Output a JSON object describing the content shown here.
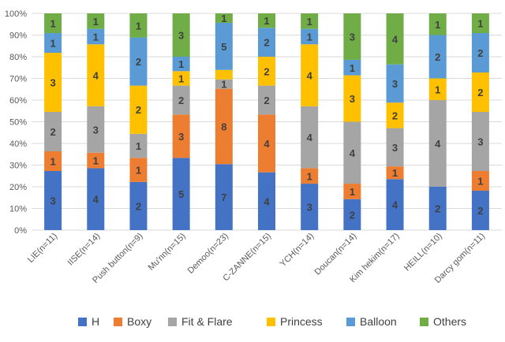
{
  "chart_data": {
    "type": "bar",
    "stacked": true,
    "percent": true,
    "title": "",
    "xlabel": "",
    "ylabel": "",
    "ylim": [
      0,
      100
    ],
    "yticks": [
      "0%",
      "10%",
      "20%",
      "30%",
      "40%",
      "50%",
      "60%",
      "70%",
      "80%",
      "90%",
      "100%"
    ],
    "grid": true,
    "legend_position": "bottom",
    "categories": [
      "LIE(n=11)",
      "IISE(n=14)",
      "Push button(n=9)",
      "Mu'nn(n=15)",
      "Demoo(n=23)",
      "C-ZANNE(n=15)",
      "YCH(n=14)",
      "Doucan(n=14)",
      "Kim hekim(n=17)",
      "HEILL(n=10)",
      "Darcy gom(n=11)"
    ],
    "series": [
      {
        "name": "H",
        "color": "#4472C4",
        "values": [
          3,
          4,
          2,
          5,
          7,
          4,
          3,
          2,
          4,
          2,
          2
        ],
        "labels": [
          "3",
          "4",
          "2",
          "5",
          "7",
          "4",
          "3",
          "2",
          "4",
          "2",
          "2"
        ]
      },
      {
        "name": "Boxy",
        "color": "#ED7D31",
        "values": [
          1,
          1,
          1,
          3,
          8,
          4,
          1,
          1,
          1,
          0,
          1
        ],
        "labels": [
          "1",
          "1",
          "1",
          "3",
          "8",
          "4",
          "1",
          "1",
          "1",
          "",
          "1"
        ]
      },
      {
        "name": "Fit & Flare",
        "color": "#A5A5A5",
        "values": [
          2,
          3,
          1,
          2,
          1,
          2,
          4,
          4,
          3,
          4,
          3
        ],
        "labels": [
          "2",
          "3",
          "1",
          "2",
          "1",
          "2",
          "4",
          "4",
          "3",
          "4",
          "3"
        ]
      },
      {
        "name": "Princess",
        "color": "#FFC000",
        "values": [
          3,
          4,
          2,
          1,
          1,
          2,
          4,
          3,
          2,
          1,
          2
        ],
        "labels": [
          "3",
          "4",
          "2",
          "1",
          "",
          "2",
          "4",
          "3",
          "2",
          "1",
          "2"
        ]
      },
      {
        "name": "Balloon",
        "color": "#5B9BD5",
        "values": [
          1,
          1,
          2,
          1,
          5,
          2,
          1,
          1,
          3,
          2,
          2
        ],
        "labels": [
          "1",
          "1",
          "2",
          "1",
          "5",
          "2",
          "1",
          "1",
          "3",
          "2",
          "2"
        ]
      },
      {
        "name": "Others",
        "color": "#70AD47",
        "values": [
          1,
          1,
          1,
          3,
          1,
          1,
          1,
          3,
          4,
          1,
          1
        ],
        "labels": [
          "1",
          "1",
          "1",
          "3",
          "1",
          "1",
          "1",
          "3",
          "4",
          "1",
          "1"
        ]
      }
    ]
  }
}
